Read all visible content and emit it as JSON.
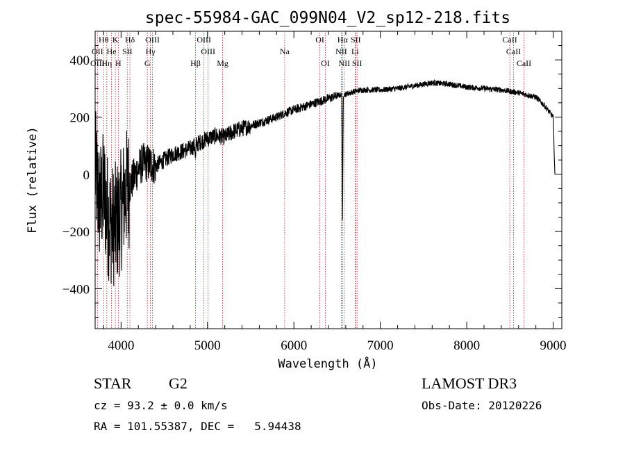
{
  "chart_data": {
    "type": "line",
    "title": "spec-55984-GAC_099N04_V2_sp12-218.fits",
    "xlabel": "Wavelength (Å)",
    "ylabel": "Flux (relative)",
    "xlim": [
      3700,
      9100
    ],
    "ylim": [
      -540,
      500
    ],
    "xticks": [
      4000,
      5000,
      6000,
      7000,
      8000,
      9000
    ],
    "yticks": [
      -400,
      -200,
      0,
      200,
      400
    ],
    "spectrum_anchors": [
      [
        3700,
        20
      ],
      [
        3750,
        -100
      ],
      [
        3800,
        -60
      ],
      [
        3850,
        -150
      ],
      [
        3900,
        -180
      ],
      [
        3950,
        -170
      ],
      [
        4000,
        -130
      ],
      [
        4050,
        -60
      ],
      [
        4100,
        -40
      ],
      [
        4150,
        -10
      ],
      [
        4200,
        20
      ],
      [
        4250,
        40
      ],
      [
        4300,
        40
      ],
      [
        4400,
        30
      ],
      [
        4500,
        50
      ],
      [
        4600,
        70
      ],
      [
        4700,
        80
      ],
      [
        4800,
        90
      ],
      [
        4900,
        110
      ],
      [
        5000,
        125
      ],
      [
        5100,
        135
      ],
      [
        5200,
        130
      ],
      [
        5300,
        150
      ],
      [
        5400,
        160
      ],
      [
        5500,
        170
      ],
      [
        5600,
        180
      ],
      [
        5700,
        190
      ],
      [
        5800,
        200
      ],
      [
        5900,
        215
      ],
      [
        6000,
        225
      ],
      [
        6100,
        235
      ],
      [
        6200,
        245
      ],
      [
        6300,
        255
      ],
      [
        6400,
        265
      ],
      [
        6500,
        275
      ],
      [
        6600,
        280
      ],
      [
        6700,
        290
      ],
      [
        6800,
        295
      ],
      [
        7000,
        295
      ],
      [
        7200,
        300
      ],
      [
        7400,
        310
      ],
      [
        7600,
        320
      ],
      [
        7800,
        315
      ],
      [
        8000,
        305
      ],
      [
        8200,
        300
      ],
      [
        8400,
        295
      ],
      [
        8600,
        285
      ],
      [
        8800,
        270
      ],
      [
        8900,
        240
      ],
      [
        9000,
        200
      ],
      [
        9010,
        100
      ],
      [
        9020,
        0
      ]
    ],
    "absorption_features": [
      {
        "wavelength": 6563,
        "depth": -190
      },
      {
        "wavelength": 4861,
        "depth": 50
      }
    ],
    "line_markers": [
      {
        "label": "Hθ",
        "wavelength": 3798,
        "row": 1
      },
      {
        "label": "K",
        "wavelength": 3934,
        "row": 1
      },
      {
        "label": "Hδ",
        "wavelength": 4102,
        "row": 1
      },
      {
        "label": "OIII",
        "wavelength": 4363,
        "row": 1
      },
      {
        "label": "OIII",
        "wavelength": 4959,
        "row": 1
      },
      {
        "label": "OI",
        "wavelength": 6300,
        "row": 1
      },
      {
        "label": "Hα",
        "wavelength": 6563,
        "row": 1
      },
      {
        "label": "SII",
        "wavelength": 6716,
        "row": 1
      },
      {
        "label": "CaII",
        "wavelength": 8498,
        "row": 1
      },
      {
        "label": "OII",
        "wavelength": 3727,
        "row": 2
      },
      {
        "label": "He",
        "wavelength": 3889,
        "row": 2
      },
      {
        "label": "SII",
        "wavelength": 4072,
        "row": 2
      },
      {
        "label": "Hγ",
        "wavelength": 4340,
        "row": 2
      },
      {
        "label": "OIII",
        "wavelength": 5007,
        "row": 2
      },
      {
        "label": "Na",
        "wavelength": 5893,
        "row": 2
      },
      {
        "label": "NII",
        "wavelength": 6548,
        "row": 2
      },
      {
        "label": "Li",
        "wavelength": 6708,
        "row": 2
      },
      {
        "label": "CaII",
        "wavelength": 8542,
        "row": 2
      },
      {
        "label": "OIII",
        "wavelength": 3727,
        "row": 3
      },
      {
        "label": "Hη",
        "wavelength": 3835,
        "row": 3
      },
      {
        "label": "H",
        "wavelength": 3968,
        "row": 3
      },
      {
        "label": "G",
        "wavelength": 4304,
        "row": 3
      },
      {
        "label": "Hβ",
        "wavelength": 4861,
        "row": 3
      },
      {
        "label": "Mg",
        "wavelength": 5175,
        "row": 3
      },
      {
        "label": "OI",
        "wavelength": 6364,
        "row": 3
      },
      {
        "label": "NII",
        "wavelength": 6583,
        "row": 3
      },
      {
        "label": "SII",
        "wavelength": 6731,
        "row": 3
      },
      {
        "label": "CaII",
        "wavelength": 8662,
        "row": 3
      }
    ]
  },
  "info": {
    "object_class": "STAR",
    "subclass": "G2",
    "survey": "LAMOST DR3",
    "redshift_line": "cz = 93.2 ± 0.0 km/s",
    "obs_date": "Obs-Date: 20120226",
    "coords": "RA = 101.55387, DEC =   5.94438"
  },
  "colors": {
    "spectrum": "#000000",
    "line_marker": "#b22222",
    "axis": "#000000"
  }
}
